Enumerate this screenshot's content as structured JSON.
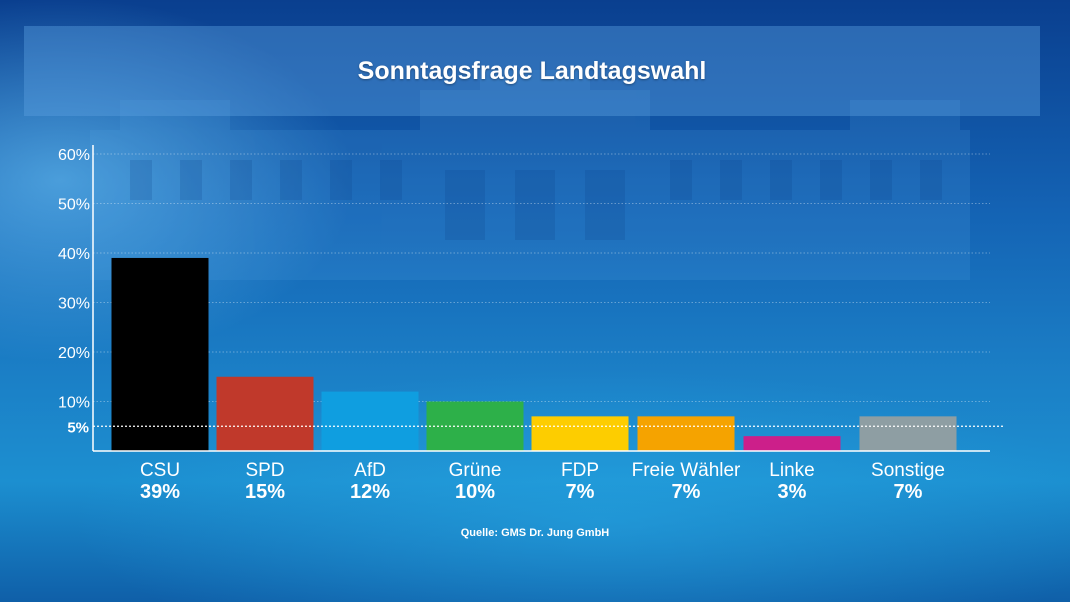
{
  "title": "Sonntagsfrage Landtagswahl",
  "source": "Quelle: GMS Dr. Jung GmbH",
  "chart_data": {
    "type": "bar",
    "title": "Sonntagsfrage Landtagswahl",
    "xlabel": "",
    "ylabel": "",
    "ylim": [
      0,
      60
    ],
    "yticks": [
      {
        "value": 10,
        "label": "10%"
      },
      {
        "value": 20,
        "label": "20%"
      },
      {
        "value": 30,
        "label": "30%"
      },
      {
        "value": 40,
        "label": "40%"
      },
      {
        "value": 50,
        "label": "50%"
      },
      {
        "value": 60,
        "label": "60%"
      }
    ],
    "threshold": {
      "value": 5,
      "label": "5%"
    },
    "grid": true,
    "categories": [
      "CSU",
      "SPD",
      "AfD",
      "Grüne",
      "FDP",
      "Freie Wähler",
      "Linke",
      "Sonstige"
    ],
    "values": [
      39,
      15,
      12,
      10,
      7,
      7,
      3,
      7
    ],
    "value_labels": [
      "39%",
      "15%",
      "12%",
      "10%",
      "7%",
      "7%",
      "3%",
      "7%"
    ],
    "colors": [
      "#000000",
      "#c0392b",
      "#0f9ee0",
      "#2db049",
      "#fdcd00",
      "#f5a300",
      "#cc1f8a",
      "#8e9ea3"
    ]
  }
}
